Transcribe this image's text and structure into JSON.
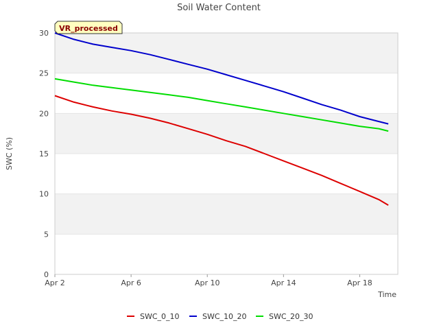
{
  "chart_data": {
    "type": "line",
    "title": "Soil Water Content",
    "xlabel": "Time",
    "ylabel": "SWC (%)",
    "xlim": [
      "2024-04-02",
      "2024-04-20"
    ],
    "ylim": [
      0,
      30
    ],
    "x_ticks": [
      {
        "label": "Apr 2",
        "value": "2024-04-02"
      },
      {
        "label": "Apr 6",
        "value": "2024-04-06"
      },
      {
        "label": "Apr 10",
        "value": "2024-04-10"
      },
      {
        "label": "Apr 14",
        "value": "2024-04-14"
      },
      {
        "label": "Apr 18",
        "value": "2024-04-18"
      }
    ],
    "y_ticks": [
      0,
      5,
      10,
      15,
      20,
      25,
      30
    ],
    "grid": "alternating horizontal bands",
    "legend_position": "bottom",
    "annotation": "VR_processed",
    "x": [
      "2024-04-02",
      "2024-04-03",
      "2024-04-04",
      "2024-04-05",
      "2024-04-06",
      "2024-04-07",
      "2024-04-08",
      "2024-04-09",
      "2024-04-10",
      "2024-04-11",
      "2024-04-12",
      "2024-04-13",
      "2024-04-14",
      "2024-04-15",
      "2024-04-16",
      "2024-04-17",
      "2024-04-18",
      "2024-04-19",
      "2024-04-19T12:00"
    ],
    "series": [
      {
        "name": "SWC_0_10",
        "color": "#dd0000",
        "values": [
          22.2,
          21.4,
          20.8,
          20.3,
          19.9,
          19.4,
          18.8,
          18.1,
          17.4,
          16.6,
          15.9,
          15.0,
          14.1,
          13.2,
          12.3,
          11.3,
          10.3,
          9.3,
          8.6
        ]
      },
      {
        "name": "SWC_10_20",
        "color": "#0000cc",
        "values": [
          30.0,
          29.2,
          28.6,
          28.2,
          27.8,
          27.3,
          26.7,
          26.1,
          25.5,
          24.8,
          24.1,
          23.4,
          22.7,
          21.9,
          21.1,
          20.4,
          19.6,
          19.0,
          18.7
        ]
      },
      {
        "name": "SWC_20_30",
        "color": "#00dd00",
        "values": [
          24.3,
          23.9,
          23.5,
          23.2,
          22.9,
          22.6,
          22.3,
          22.0,
          21.6,
          21.2,
          20.8,
          20.4,
          20.0,
          19.6,
          19.2,
          18.8,
          18.4,
          18.1,
          17.8
        ]
      }
    ]
  }
}
